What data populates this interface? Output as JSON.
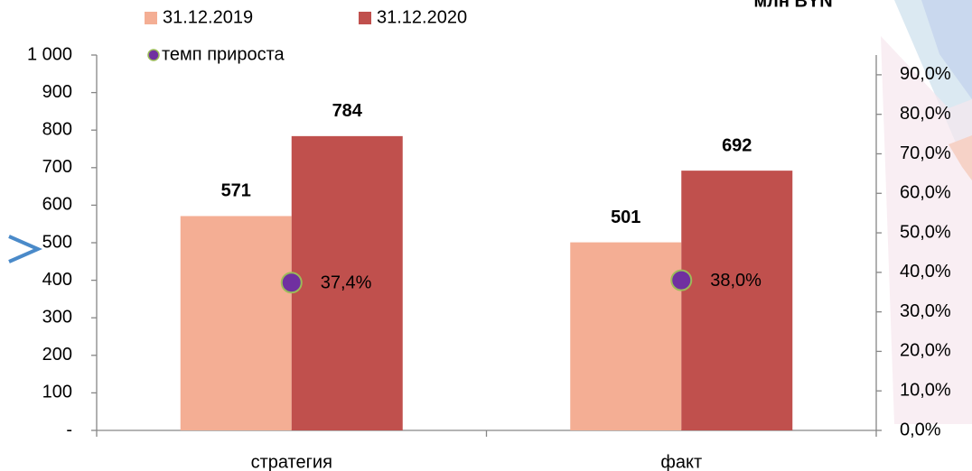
{
  "chart_data": {
    "type": "bar",
    "unit": "млн BYN",
    "categories": [
      "стратегия",
      "факт"
    ],
    "series": [
      {
        "name": "31.12.2019",
        "color": "#f4ae94",
        "values": [
          571,
          501
        ]
      },
      {
        "name": "31.12.2020",
        "color": "#c0504d",
        "values": [
          784,
          692
        ]
      },
      {
        "name": "темп прироста",
        "color": "#7030a0",
        "axis": "y2",
        "values": [
          37.4,
          38.0
        ],
        "value_labels": [
          "37,4%",
          "38,0%"
        ]
      }
    ],
    "ylim": [
      0,
      1000
    ],
    "yticks": [
      {
        "value": 0,
        "label": "-"
      },
      100,
      200,
      300,
      400,
      500,
      600,
      700,
      800,
      900,
      {
        "value": 1000,
        "label": "1 000"
      }
    ],
    "y2lim": [
      0,
      95
    ],
    "y2ticks": [
      {
        "value": 0,
        "label": "0,0%"
      },
      {
        "value": 10,
        "label": "10,0%"
      },
      {
        "value": 20,
        "label": "20,0%"
      },
      {
        "value": 30,
        "label": "30,0%"
      },
      {
        "value": 40,
        "label": "40,0%"
      },
      {
        "value": 50,
        "label": "50,0%"
      },
      {
        "value": 60,
        "label": "60,0%"
      },
      {
        "value": 70,
        "label": "70,0%"
      },
      {
        "value": 80,
        "label": "80,0%"
      },
      {
        "value": 90,
        "label": "90,0%"
      }
    ],
    "legend": "top",
    "grid": false
  }
}
